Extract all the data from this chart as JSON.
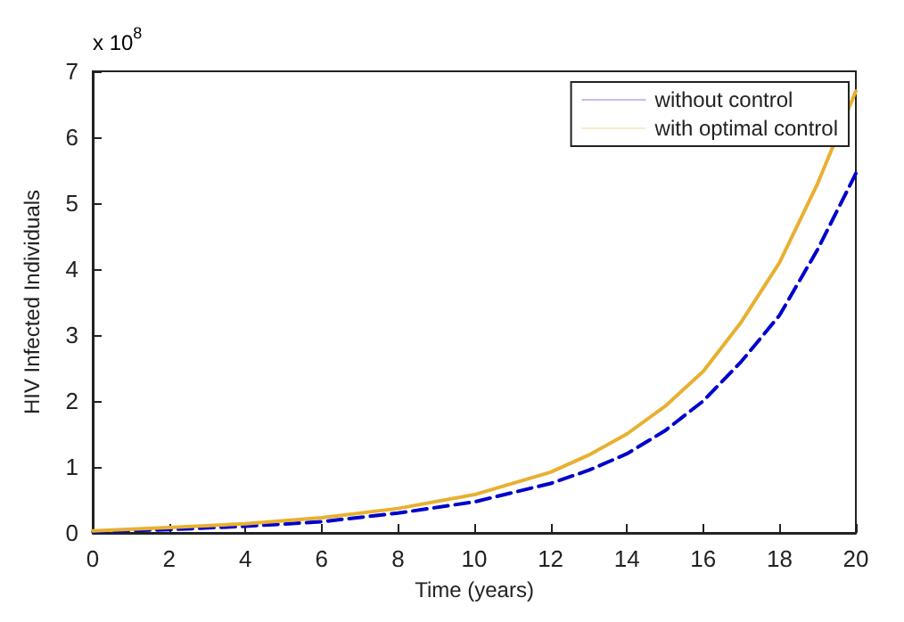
{
  "chart_data": {
    "type": "line",
    "xlabel": "Time (years)",
    "ylabel": "HIV Infected Individuals",
    "annotations": [
      "x 10$^{8}$"
    ],
    "x": [
      0,
      2,
      4,
      6,
      8,
      10,
      12,
      13,
      14,
      15,
      16,
      17,
      18,
      19,
      20
    ],
    "series": [
      {
        "name": "without control",
        "color": "#0000cc",
        "line_style": "dashed",
        "values": [
          0.02,
          0.05,
          0.1,
          0.17,
          0.3,
          0.47,
          0.75,
          0.95,
          1.2,
          1.55,
          2.0,
          2.6,
          3.3,
          4.3,
          5.45
        ]
      },
      {
        "name": "with optimal control",
        "color": "#e8b030",
        "line_style": "solid",
        "values": [
          0.03,
          0.08,
          0.14,
          0.23,
          0.37,
          0.58,
          0.92,
          1.18,
          1.5,
          1.92,
          2.45,
          3.2,
          4.1,
          5.3,
          6.7
        ]
      }
    ],
    "xlim": [
      0,
      20
    ],
    "xticks": [
      0,
      2,
      4,
      6,
      8,
      10,
      12,
      14,
      16,
      18,
      20
    ],
    "ylim": [
      0,
      7
    ],
    "yticks": [
      0,
      1,
      2,
      3,
      4,
      5,
      6,
      7
    ],
    "legend": "top right",
    "grid": false,
    "marker": "none"
  }
}
